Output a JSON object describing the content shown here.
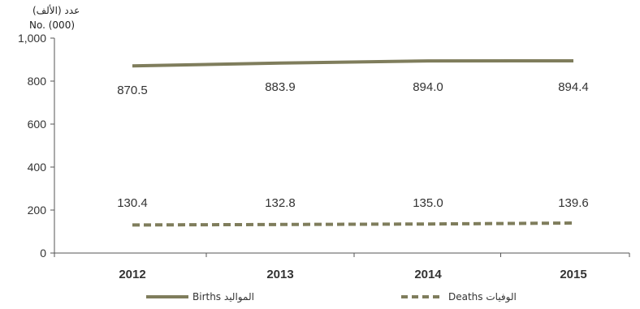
{
  "chart_data": {
    "type": "line",
    "categories": [
      "2012",
      "2013",
      "2014",
      "2015"
    ],
    "series": [
      {
        "name": "Births المواليد",
        "values": [
          870.5,
          883.9,
          894.0,
          894.4
        ],
        "labels": [
          "870.5",
          "883.9",
          "894.0",
          "894.4"
        ],
        "style": "solid",
        "color": "#7f7d5c"
      },
      {
        "name": "Deaths الوفيات",
        "values": [
          130.4,
          132.8,
          135.0,
          139.6
        ],
        "labels": [
          "130.4",
          "132.8",
          "135.0",
          "139.6"
        ],
        "style": "dashed",
        "color": "#7f7d5c"
      }
    ],
    "ylabel_ar": "عدد (الألف)",
    "ylabel_en": "No. (000)",
    "ylim": [
      0,
      1000
    ],
    "yticks": [
      0,
      200,
      400,
      600,
      800,
      1000
    ],
    "ytick_labels": [
      "0",
      "200",
      "400",
      "600",
      "800",
      "1,000"
    ],
    "grid": false,
    "legend": "bottom"
  }
}
